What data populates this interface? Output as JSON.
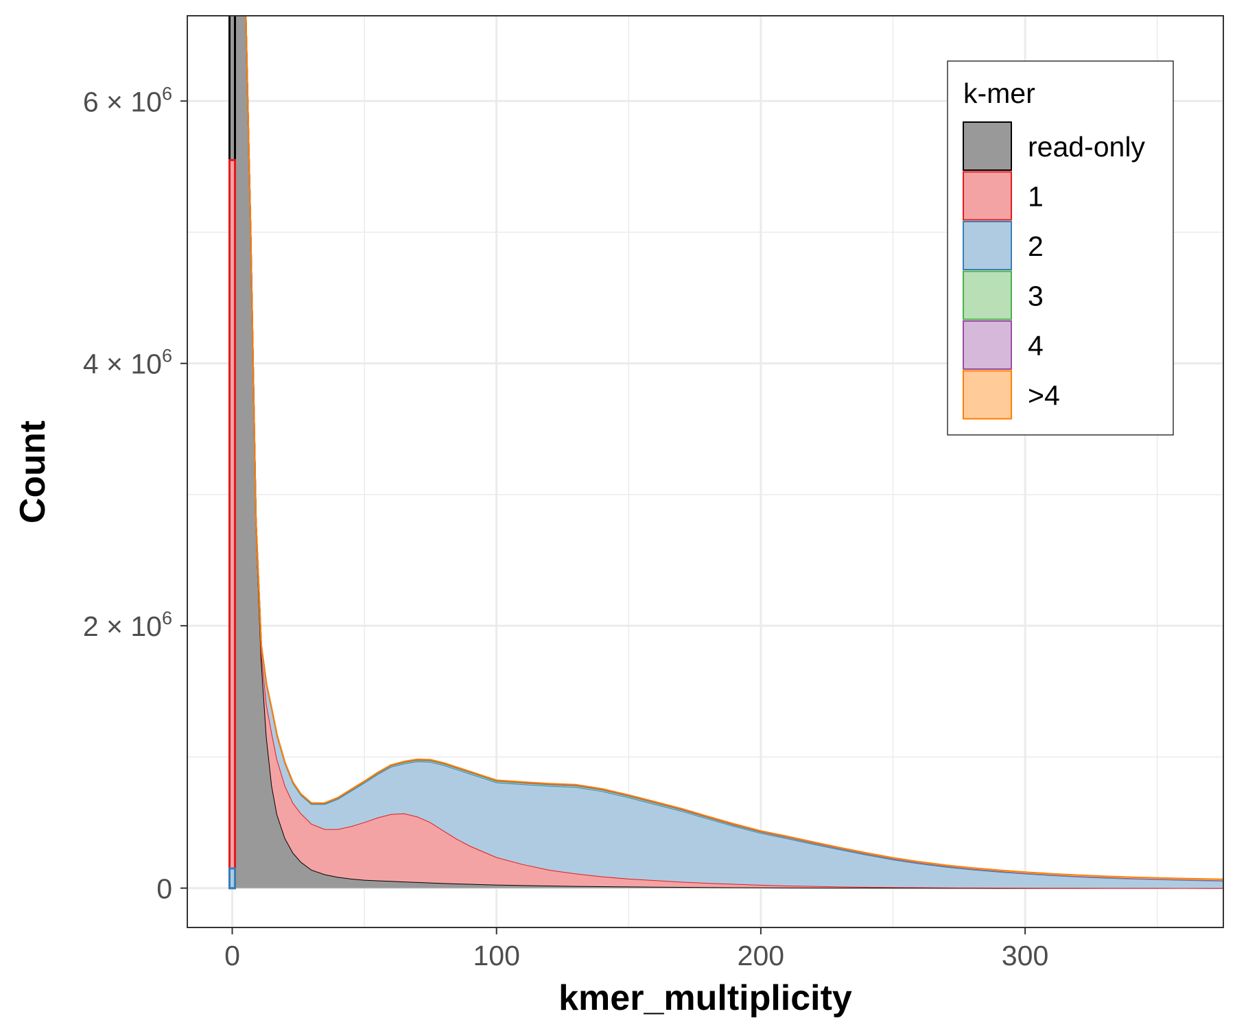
{
  "chart_data": {
    "type": "area",
    "xlabel": "kmer_multiplicity",
    "ylabel": "Count",
    "xlim": [
      -17,
      375
    ],
    "ylim": [
      -300000,
      6650000
    ],
    "x_ticks": [
      0,
      100,
      200,
      300
    ],
    "x_tick_labels": [
      "0",
      "100",
      "200",
      "300"
    ],
    "y_ticks": [
      {
        "value": 0,
        "mantissa": "0",
        "exponent": ""
      },
      {
        "value": 2000000,
        "mantissa": "2 × 10",
        "exponent": "6"
      },
      {
        "value": 4000000,
        "mantissa": "4 × 10",
        "exponent": "6"
      },
      {
        "value": 6000000,
        "mantissa": "6 × 10",
        "exponent": "6"
      }
    ],
    "grid": true,
    "stacked": true,
    "legend": {
      "title": "k-mer",
      "position": "top-right"
    },
    "x": [
      1,
      3,
      5,
      7,
      9,
      11,
      13,
      15,
      17,
      20,
      23,
      26,
      30,
      35,
      40,
      45,
      50,
      55,
      60,
      65,
      70,
      75,
      80,
      85,
      90,
      95,
      100,
      110,
      120,
      130,
      140,
      150,
      160,
      170,
      180,
      190,
      200,
      210,
      220,
      230,
      240,
      250,
      260,
      270,
      280,
      290,
      300,
      310,
      320,
      330,
      340,
      350,
      360,
      370,
      375
    ],
    "series": [
      {
        "name": "read-only",
        "color": "#000000",
        "fill": "#999999",
        "zero_bar": 10000000,
        "values": [
          7000000,
          6900000,
          6800000,
          5000000,
          2800000,
          1750000,
          1150000,
          780000,
          560000,
          380000,
          270000,
          200000,
          140000,
          105000,
          85000,
          72000,
          63000,
          58000,
          54000,
          50000,
          46000,
          42000,
          38000,
          35000,
          32000,
          29000,
          26000,
          22000,
          19000,
          16000,
          14000,
          12000,
          10000,
          8500,
          7200,
          6000,
          5000,
          4200,
          3500,
          2900,
          2400,
          2000,
          1700,
          1400,
          1200,
          1000,
          900,
          800,
          700,
          600,
          500,
          450,
          400,
          350,
          300
        ]
      },
      {
        "name": "1",
        "color": "#e41a1c",
        "fill": "#f4a3a4",
        "zero_bar": 5550000,
        "values": [
          0,
          0,
          0,
          0,
          0,
          50000,
          250000,
          400000,
          420000,
          400000,
          380000,
          370000,
          350000,
          345000,
          365000,
          400000,
          440000,
          480000,
          510000,
          520000,
          500000,
          460000,
          400000,
          340000,
          290000,
          250000,
          210000,
          160000,
          120000,
          95000,
          75000,
          60000,
          50000,
          40000,
          32000,
          26000,
          20000,
          15000,
          12000,
          9000,
          7000,
          5500,
          4000,
          3000,
          2500,
          2000,
          1500,
          1200,
          1000,
          800,
          700,
          600,
          500,
          450,
          400
        ]
      },
      {
        "name": "2",
        "color": "#377eb8",
        "fill": "#afcbe2",
        "zero_bar": 150000,
        "values": [
          0,
          0,
          0,
          0,
          0,
          50000,
          150000,
          180000,
          180000,
          170000,
          150000,
          140000,
          150000,
          190000,
          230000,
          270000,
          300000,
          330000,
          360000,
          380000,
          420000,
          460000,
          500000,
          530000,
          550000,
          560000,
          570000,
          610000,
          640000,
          660000,
          650000,
          620000,
          580000,
          540000,
          490000,
          440000,
          395000,
          360000,
          320000,
          282000,
          245000,
          210000,
          182000,
          158000,
          138000,
          122000,
          108000,
          96000,
          86000,
          78000,
          71000,
          66000,
          61000,
          57000,
          55000
        ]
      },
      {
        "name": "3",
        "color": "#4daf4a",
        "fill": "#b8dfb6",
        "values": [
          0,
          0,
          0,
          0,
          0,
          500,
          2000,
          3000,
          3500,
          4000,
          4500,
          5000,
          5500,
          6000,
          6500,
          7000,
          7500,
          8000,
          8500,
          9000,
          9500,
          10000,
          10000,
          10000,
          10000,
          10000,
          10000,
          10000,
          10000,
          10000,
          10000,
          10000,
          10000,
          9500,
          9000,
          8500,
          8000,
          7500,
          7000,
          6500,
          6000,
          5500,
          5000,
          4500,
          4000,
          3500,
          3000,
          3000,
          2500,
          2500,
          2000,
          2000,
          2000,
          2000,
          2000
        ]
      },
      {
        "name": "4",
        "color": "#984ea3",
        "fill": "#d6b8db",
        "values": [
          0,
          0,
          0,
          0,
          0,
          200,
          500,
          800,
          1000,
          1200,
          1400,
          1600,
          1800,
          2000,
          2200,
          2400,
          2600,
          2800,
          3000,
          3200,
          3400,
          3600,
          3600,
          3600,
          3600,
          3600,
          3600,
          3600,
          3600,
          3600,
          3600,
          3600,
          3600,
          3400,
          3200,
          3000,
          2800,
          2600,
          2400,
          2200,
          2000,
          1800,
          1600,
          1500,
          1400,
          1300,
          1200,
          1100,
          1000,
          1000,
          900,
          900,
          800,
          800,
          800
        ]
      },
      {
        "name": ">4",
        "color": "#ff7f00",
        "fill": "#ffcb99",
        "values": [
          0,
          0,
          0,
          0,
          0,
          200,
          500,
          800,
          1000,
          1200,
          1400,
          1600,
          1800,
          2000,
          2200,
          2400,
          2600,
          2800,
          3000,
          3200,
          3400,
          3600,
          3600,
          3600,
          3600,
          3600,
          3600,
          3800,
          4000,
          4200,
          4400,
          4600,
          4800,
          5000,
          5200,
          5400,
          5600,
          5800,
          6000,
          6200,
          6400,
          6600,
          6800,
          7000,
          7200,
          7400,
          7600,
          7800,
          8000,
          8200,
          8400,
          8600,
          8800,
          9000,
          9000
        ]
      }
    ]
  }
}
